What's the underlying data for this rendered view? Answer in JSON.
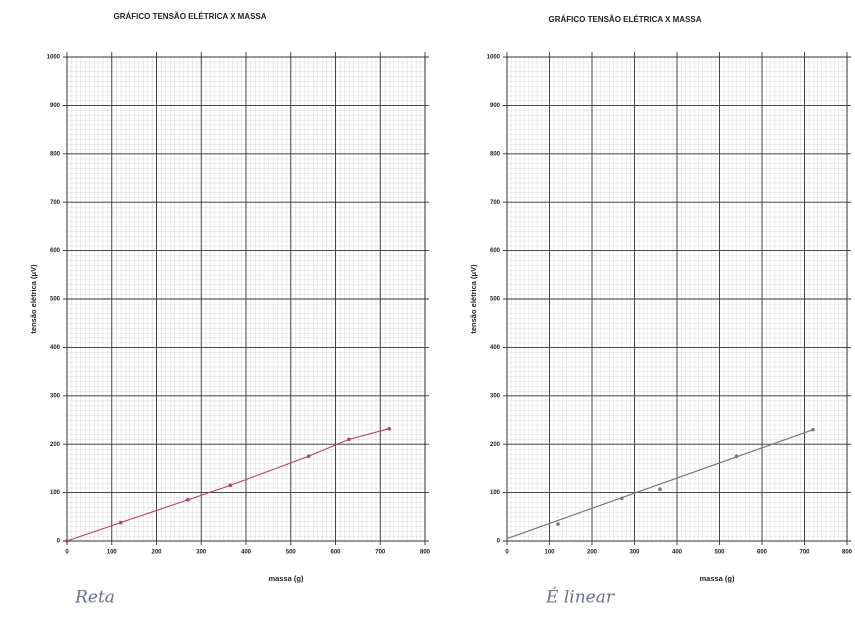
{
  "chart_data": [
    {
      "type": "line",
      "title": "GRÁFICO TENSÃO ELÉTRICA X MASSA",
      "x_label": "massa (g)",
      "y_label": "tensão elétrica (μV)",
      "annotation": "Reta",
      "x": [
        0,
        120,
        270,
        365,
        540,
        630,
        720
      ],
      "series": [
        {
          "color": "#b0455e",
          "values": [
            0,
            38,
            85,
            115,
            175,
            210,
            232
          ]
        }
      ],
      "xlim": [
        0,
        800
      ],
      "xticks": [
        0,
        100,
        200,
        300,
        400,
        500,
        600,
        700,
        800
      ],
      "ylim": [
        0,
        1000
      ],
      "yticks": [
        0,
        100,
        200,
        300,
        400,
        500,
        600,
        700,
        800,
        900,
        1000
      ],
      "grid": true
    },
    {
      "type": "scatter",
      "title": "GRÁFICO TENSÃO ELÉTRICA X MASSA",
      "x_label": "massa (g)",
      "y_label": "tensão elétrica (μV)",
      "annotation": "É linear",
      "x": [
        120,
        270,
        360,
        540,
        720
      ],
      "series": [
        {
          "color": "#777777",
          "values": [
            35,
            88,
            107,
            175,
            230
          ]
        }
      ],
      "trendline": {
        "x": [
          0,
          720
        ],
        "y": [
          5,
          230
        ],
        "color": "#777777"
      },
      "xlim": [
        0,
        800
      ],
      "xticks": [
        0,
        100,
        200,
        300,
        400,
        500,
        600,
        700,
        800
      ],
      "ylim": [
        0,
        1000
      ],
      "yticks": [
        0,
        100,
        200,
        300,
        400,
        500,
        600,
        700,
        800,
        900,
        1000
      ],
      "grid": true
    }
  ]
}
